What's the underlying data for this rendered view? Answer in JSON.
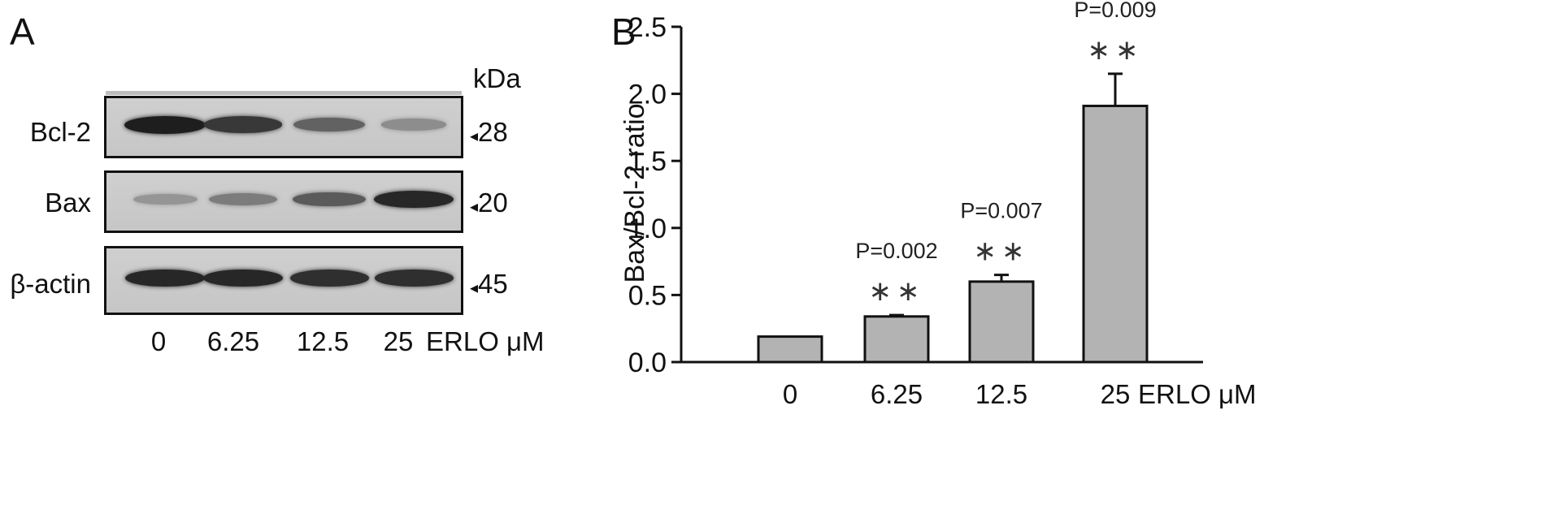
{
  "panel_a": {
    "letter": "A",
    "kda_label": "kDa",
    "blots": [
      {
        "label": "Bcl-2",
        "marker": "28",
        "intensities": [
          1.0,
          0.85,
          0.6,
          0.35
        ]
      },
      {
        "label": "Bax",
        "marker": "20",
        "intensities": [
          0.3,
          0.45,
          0.65,
          0.95
        ]
      },
      {
        "label": "β-actin",
        "marker": "45",
        "intensities": [
          0.95,
          0.95,
          0.9,
          0.9
        ]
      }
    ],
    "lanes": [
      "0",
      "6.25",
      "12.5",
      "25"
    ],
    "treatment_label": "ERLO μM",
    "marker_arrow": "◂"
  },
  "panel_b": {
    "letter": "B"
  },
  "chart_data": {
    "type": "bar",
    "title": "",
    "categories": [
      "0",
      "6.25",
      "12.5",
      "25"
    ],
    "values": [
      0.19,
      0.34,
      0.6,
      1.91
    ],
    "errors": [
      0.0,
      0.01,
      0.05,
      0.24
    ],
    "ylabel": "Bax/Bcl-2 ratio",
    "xlabel": "ERLO μM",
    "ylim": [
      0,
      2.5
    ],
    "yticks": [
      "0.0",
      "0.5",
      "1.0",
      "1.5",
      "2.0",
      "2.5"
    ],
    "annotations": [
      {
        "p": "",
        "stars": ""
      },
      {
        "p": "P=0.002",
        "stars": "∗∗"
      },
      {
        "p": "P=0.007",
        "stars": "∗∗"
      },
      {
        "p": "P=0.009",
        "stars": "∗∗"
      }
    ],
    "bar_color": "#b3b3b3",
    "edge_color": "#111111",
    "grid": false
  }
}
